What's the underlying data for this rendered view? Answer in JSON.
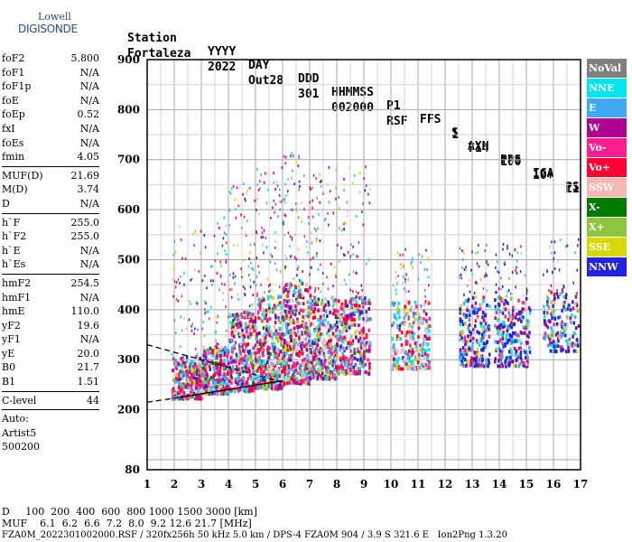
{
  "logo": {
    "line1": "Lowell",
    "line2": "DIGISONDE"
  },
  "header": {
    "labels": [
      "Station",
      "YYYY",
      "DAY",
      "DDD",
      "HHMMSS",
      "P1",
      "FFS",
      "S",
      "AXN",
      "PPS",
      "IGA",
      "PS"
    ],
    "values": [
      "Fortaleza",
      "2022",
      "Out28",
      "301",
      "002000",
      "RSF",
      "1",
      "714",
      "100",
      "10+",
      "11"
    ]
  },
  "params": {
    "group1": [
      [
        "foF2",
        "5.800"
      ],
      [
        "foF1",
        "N/A"
      ],
      [
        "foF1p",
        "N/A"
      ],
      [
        "foE",
        "N/A"
      ],
      [
        "foEp",
        "0.52"
      ],
      [
        "fxI",
        "N/A"
      ],
      [
        "foEs",
        "N/A"
      ],
      [
        "fmin",
        "4.05"
      ]
    ],
    "group2": [
      [
        "MUF(D)",
        "21.69"
      ],
      [
        "M(D)",
        "3.74"
      ],
      [
        "D",
        "N/A"
      ]
    ],
    "group3": [
      [
        "h`F",
        "255.0"
      ],
      [
        "h`F2",
        "255.0"
      ],
      [
        "h`E",
        "N/A"
      ],
      [
        "h`Es",
        "N/A"
      ]
    ],
    "group4": [
      [
        "hmF2",
        "254.5"
      ],
      [
        "hmF1",
        "N/A"
      ],
      [
        "hmE",
        "110.0"
      ],
      [
        "yF2",
        "19.6"
      ],
      [
        "yF1",
        "N/A"
      ],
      [
        "yE",
        "20.0"
      ],
      [
        "B0",
        "21.7"
      ],
      [
        "B1",
        "1.51"
      ]
    ],
    "group5": [
      [
        "C-level",
        "44"
      ]
    ],
    "auto": [
      "Auto:",
      "Artist5",
      "500200"
    ]
  },
  "legend": [
    {
      "label": "NoVal",
      "color": "#808080"
    },
    {
      "label": "NNE",
      "color": "#00e5ee"
    },
    {
      "label": "E",
      "color": "#3fa9f5"
    },
    {
      "label": "W",
      "color": "#b0008f"
    },
    {
      "label": "Vo-",
      "color": "#ff1f8f"
    },
    {
      "label": "Vo+",
      "color": "#ff0033"
    },
    {
      "label": "SSW",
      "color": "#f4b8b0"
    },
    {
      "label": "X-",
      "color": "#007a00"
    },
    {
      "label": "X+",
      "color": "#8cc63f"
    },
    {
      "label": "SSE",
      "color": "#d8d800"
    },
    {
      "label": "NNW",
      "color": "#2222e0"
    }
  ],
  "chart_data": {
    "type": "scatter",
    "xlim": [
      1,
      17
    ],
    "ylim": [
      80,
      900
    ],
    "xticks": [
      "1",
      "2",
      "3",
      "4",
      "5",
      "6",
      "7",
      "8",
      "9",
      "10",
      "11",
      "12",
      "13",
      "14",
      "15",
      "16",
      "17"
    ],
    "yticks": [
      "80",
      "200",
      "300",
      "400",
      "500",
      "600",
      "700",
      "800",
      "900"
    ],
    "grid": true,
    "clusters": [
      {
        "x": [
          1.9,
          3.0
        ],
        "y": [
          225,
          310
        ],
        "n": 260
      },
      {
        "x": [
          3.0,
          4.0
        ],
        "y": [
          235,
          330
        ],
        "n": 300
      },
      {
        "x": [
          4.0,
          5.0
        ],
        "y": [
          240,
          400
        ],
        "n": 320
      },
      {
        "x": [
          5.0,
          6.0
        ],
        "y": [
          245,
          430
        ],
        "n": 340
      },
      {
        "x": [
          6.0,
          7.0
        ],
        "y": [
          255,
          460
        ],
        "n": 360
      },
      {
        "x": [
          7.0,
          8.0
        ],
        "y": [
          265,
          430
        ],
        "n": 300
      },
      {
        "x": [
          8.0,
          9.2
        ],
        "y": [
          275,
          430
        ],
        "n": 300
      },
      {
        "x": [
          10.0,
          11.4
        ],
        "y": [
          285,
          420
        ],
        "n": 240
      },
      {
        "x": [
          12.5,
          13.6
        ],
        "y": [
          290,
          430
        ],
        "n": 200
      },
      {
        "x": [
          13.8,
          15.1
        ],
        "y": [
          290,
          430
        ],
        "n": 230
      },
      {
        "x": [
          15.6,
          16.9
        ],
        "y": [
          320,
          440
        ],
        "n": 150
      }
    ],
    "trace_lines": [
      {
        "x": [
          1.0,
          6.0
        ],
        "y": [
          330,
          255
        ],
        "style": "dashed"
      },
      {
        "x": [
          1.0,
          2.0
        ],
        "y": [
          215,
          223
        ],
        "style": "dashed"
      },
      {
        "x": [
          2.0,
          6.0
        ],
        "y": [
          223,
          258
        ],
        "style": "solid"
      }
    ]
  },
  "bottom": {
    "d_row": "D     100  200  400  600  800 1000 1500 3000 [km]",
    "muf_row": "MUF    6.1  6.2  6.6  7.2  8.0  9.2 12.6 21.7 [MHz]",
    "footer": "FZA0M_2022301002000.RSF / 320fx256h 50 kHz 5.0 km / DPS-4 FZA0M 904 / 3.9 S 321.6 E   Ion2Png 1.3.20"
  }
}
